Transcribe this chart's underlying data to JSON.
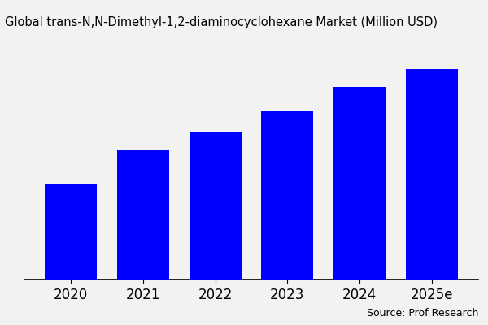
{
  "title": "Global trans-N,N-Dimethyl-1,2-diaminocyclohexane Market (Million USD)",
  "categories": [
    "2020",
    "2021",
    "2022",
    "2023",
    "2024",
    "2025e"
  ],
  "values": [
    32,
    44,
    50,
    57,
    65,
    71
  ],
  "bar_color": "#0000ff",
  "background_color": "#f2f2f2",
  "source_text": "Source: Prof Research",
  "title_fontsize": 10.5,
  "tick_fontsize": 12,
  "source_fontsize": 9,
  "ylim": [
    0,
    78
  ],
  "bar_width": 0.72
}
